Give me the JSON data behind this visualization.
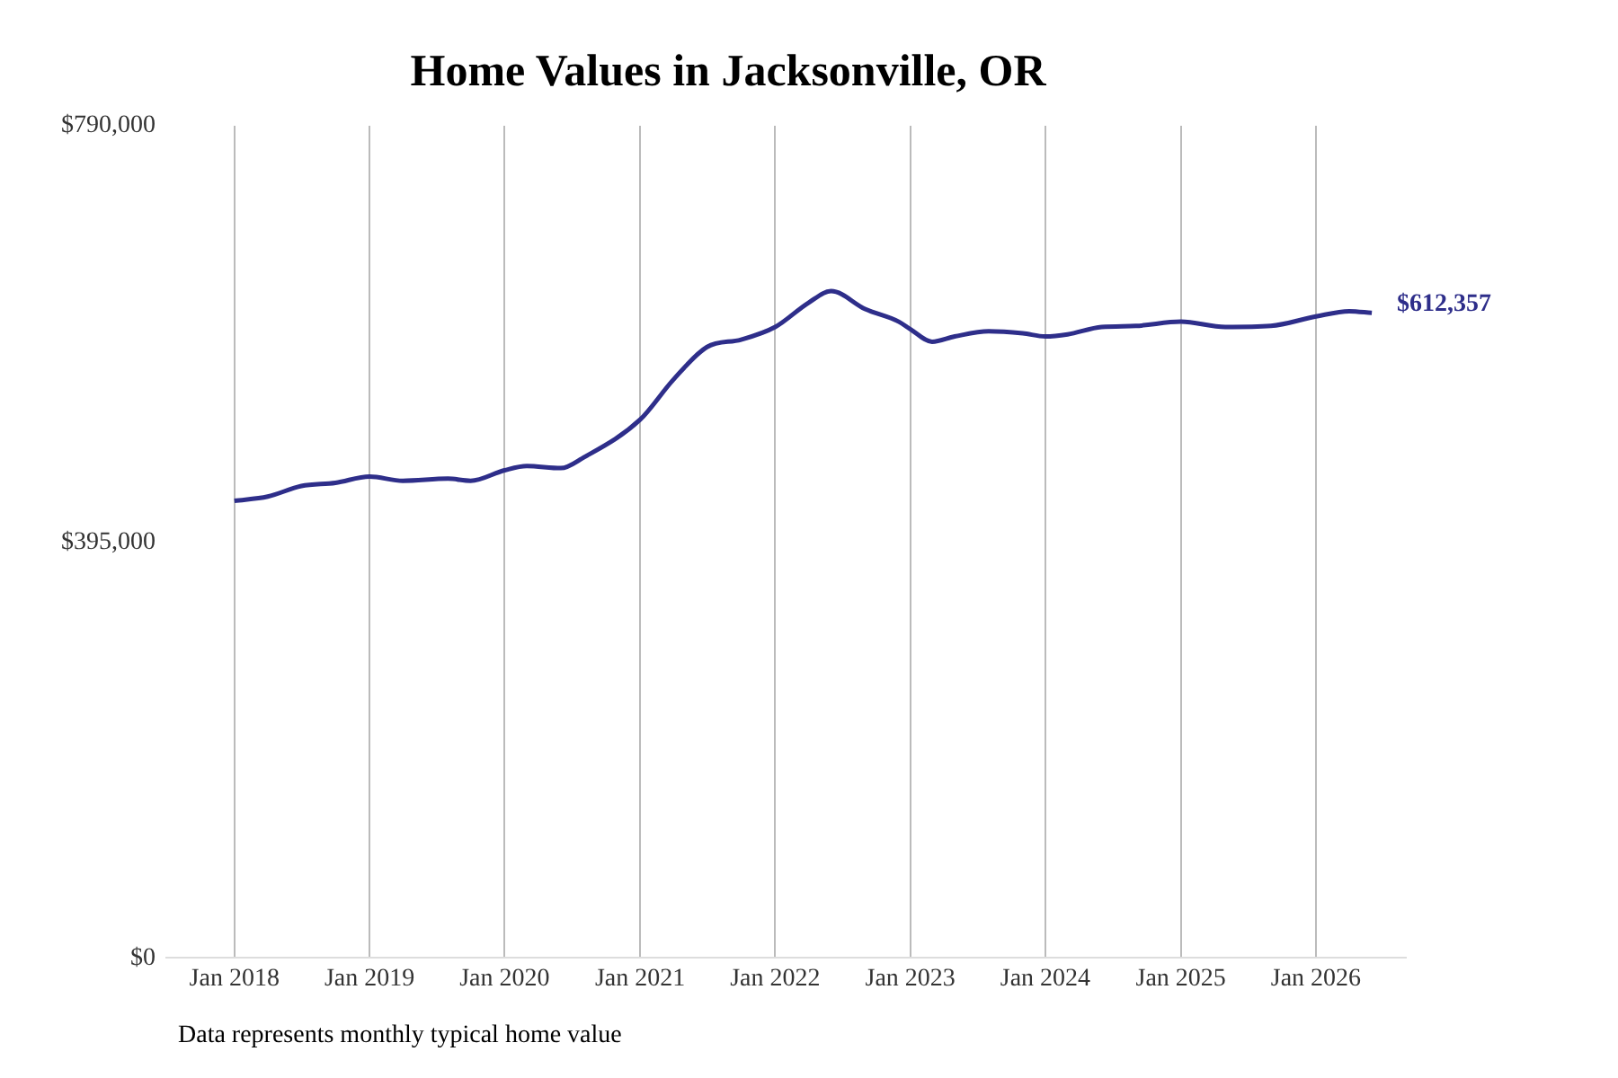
{
  "chart_data": {
    "type": "line",
    "title": "Home Values in Jacksonville, OR",
    "x": [
      "2018-01",
      "2018-04",
      "2018-07",
      "2018-10",
      "2019-01",
      "2019-04",
      "2019-08",
      "2019-10",
      "2020-01",
      "2020-03",
      "2020-06",
      "2020-08",
      "2021-01",
      "2021-04",
      "2021-07",
      "2021-10",
      "2022-01",
      "2022-04",
      "2022-06",
      "2022-09",
      "2022-12",
      "2023-01",
      "2023-03",
      "2023-05",
      "2023-08",
      "2023-11",
      "2024-01",
      "2024-03",
      "2024-06",
      "2024-09",
      "2025-01",
      "2025-05",
      "2025-09",
      "2026-01",
      "2026-04",
      "2026-06"
    ],
    "series": [
      {
        "color": "#2e2e8a",
        "values": [
          434000,
          438000,
          448000,
          451000,
          457000,
          453000,
          455000,
          453000,
          463000,
          467000,
          465000,
          475000,
          511000,
          549000,
          580000,
          587000,
          599000,
          622000,
          633000,
          616000,
          604000,
          597000,
          585000,
          590000,
          595000,
          593000,
          590000,
          592000,
          599000,
          600000,
          604000,
          599000,
          600000,
          609000,
          614000,
          612357
        ]
      }
    ],
    "xticks": [
      {
        "value": "2018-01",
        "label": "Jan 2018"
      },
      {
        "value": "2019-01",
        "label": "Jan 2019"
      },
      {
        "value": "2020-01",
        "label": "Jan 2020"
      },
      {
        "value": "2021-01",
        "label": "Jan 2021"
      },
      {
        "value": "2022-01",
        "label": "Jan 2022"
      },
      {
        "value": "2023-01",
        "label": "Jan 2023"
      },
      {
        "value": "2024-01",
        "label": "Jan 2024"
      },
      {
        "value": "2025-01",
        "label": "Jan 2025"
      },
      {
        "value": "2026-01",
        "label": "Jan 2026"
      }
    ],
    "xlim": [
      "2017-07",
      "2026-09"
    ],
    "ylim": [
      0,
      790000
    ],
    "yticks": [
      {
        "value": 0,
        "label": "$0"
      },
      {
        "value": 395000,
        "label": "$395,000"
      },
      {
        "value": 790000,
        "label": "$790,000"
      }
    ],
    "grid": "x",
    "annotations": [
      {
        "text": "$612,357",
        "x": "2026-06",
        "y": 612357
      },
      "Data represents monthly typical home value"
    ]
  }
}
